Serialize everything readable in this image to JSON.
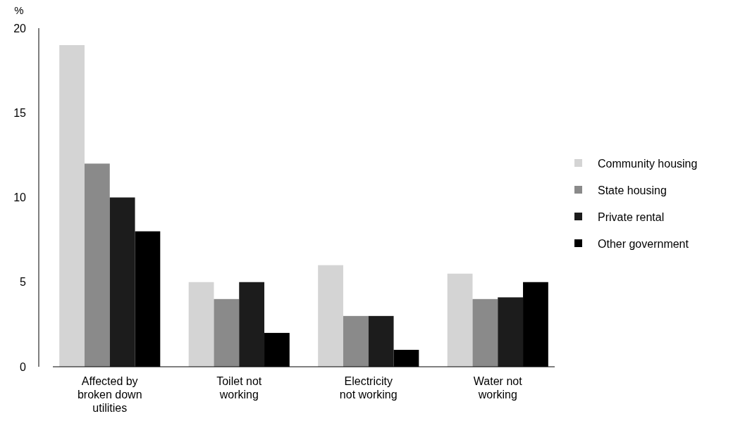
{
  "chart_data": {
    "type": "bar",
    "ylabel": "%",
    "categories": [
      "Affected by\nbroken down\nutilities",
      "Toilet not\nworking",
      "Electricity\nnot working",
      "Water not\nworking"
    ],
    "series": [
      {
        "name": "Community housing",
        "color": "#d4d4d4",
        "values": [
          19,
          5,
          6,
          5.5
        ]
      },
      {
        "name": "State housing",
        "color": "#8a8a8a",
        "values": [
          12,
          4,
          3,
          4
        ]
      },
      {
        "name": "Private rental",
        "color": "#1c1c1c",
        "values": [
          10,
          5,
          3,
          4.1
        ]
      },
      {
        "name": "Other government",
        "color": "#000000",
        "values": [
          8,
          2,
          1,
          5
        ]
      }
    ],
    "ylim": [
      0,
      20
    ],
    "yticks": [
      0,
      5,
      10,
      15,
      20
    ],
    "grid": false,
    "legend": "right"
  }
}
